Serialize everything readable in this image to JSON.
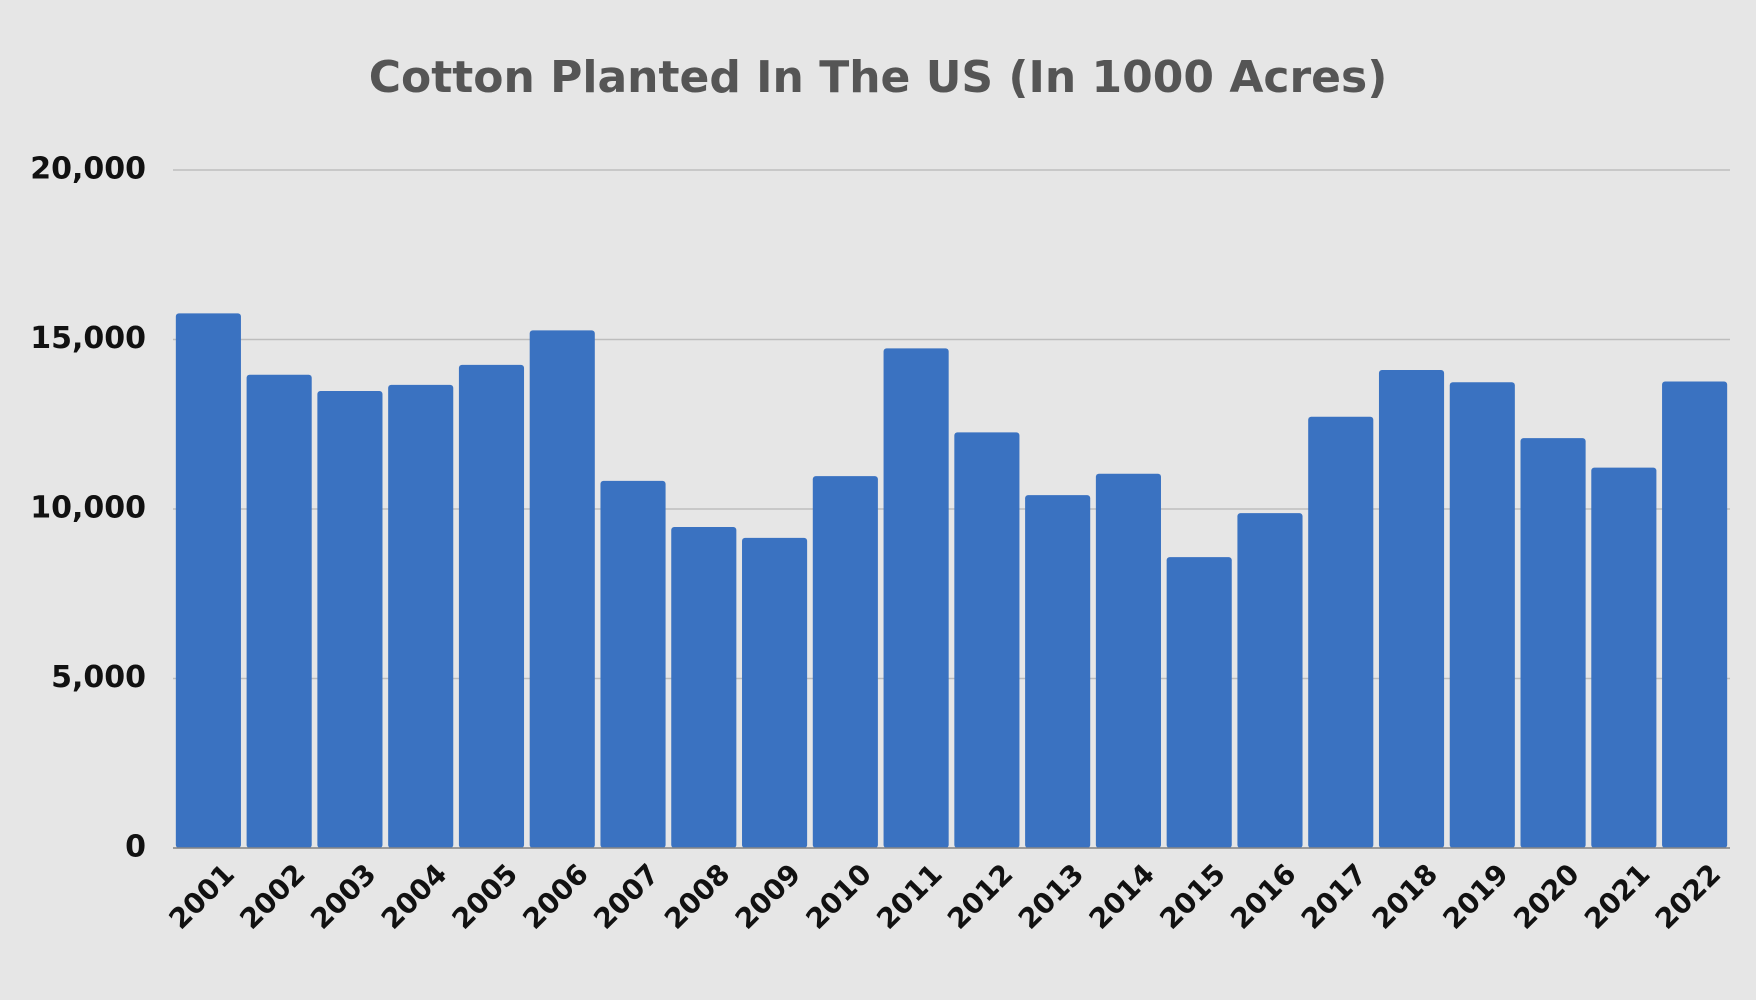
{
  "chart_data": {
    "type": "bar",
    "title": "Cotton Planted In The US (In 1000 Acres)",
    "categories": [
      "2001",
      "2002",
      "2003",
      "2004",
      "2005",
      "2006",
      "2007",
      "2008",
      "2009",
      "2010",
      "2011",
      "2012",
      "2013",
      "2014",
      "2015",
      "2016",
      "2017",
      "2018",
      "2019",
      "2020",
      "2021",
      "2022"
    ],
    "values": [
      15770,
      13960,
      13480,
      13660,
      14250,
      15270,
      10830,
      9470,
      9150,
      10970,
      14740,
      12260,
      10410,
      11040,
      8580,
      9880,
      12720,
      14100,
      13740,
      12090,
      11220,
      13760
    ],
    "color": "#3a72c1",
    "ylim": [
      0,
      20000
    ],
    "yticks": [
      0,
      {
        "value": 5000,
        "label": "5,000"
      },
      {
        "value": 10000,
        "label": "10,000"
      },
      {
        "value": 15000,
        "label": "15,000"
      },
      {
        "value": 20000,
        "label": "20,000"
      }
    ],
    "grid": true
  }
}
